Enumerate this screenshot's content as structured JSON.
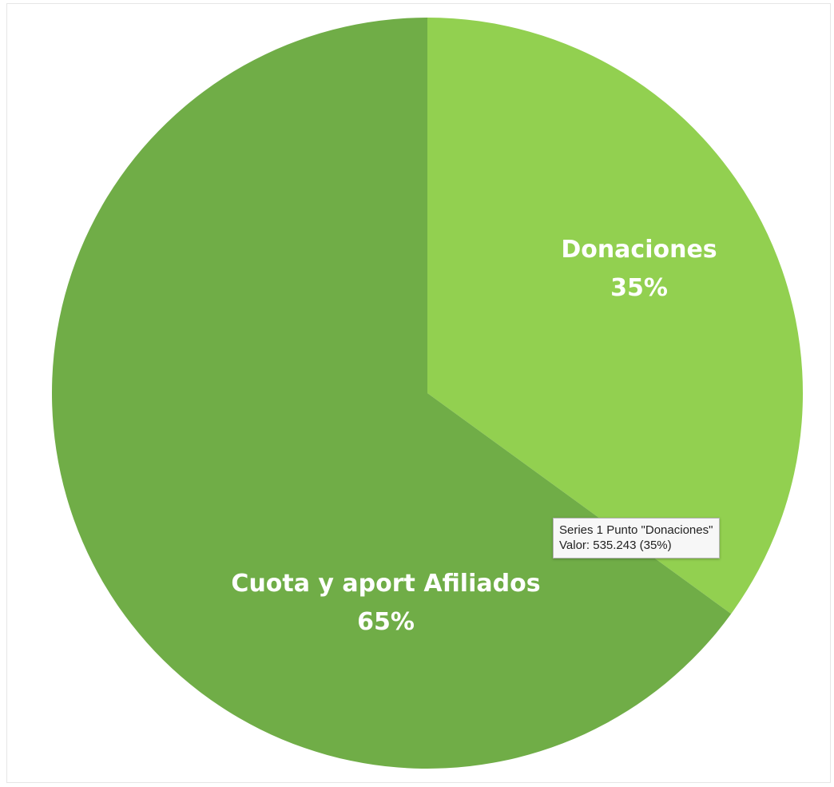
{
  "chart_data": {
    "type": "pie",
    "series": [
      {
        "name": "Series 1",
        "slices": [
          {
            "label": "Donaciones",
            "percent_label": "35%",
            "fraction": 0.35,
            "color": "#92d050"
          },
          {
            "label": "Cuota y aport Afiliados",
            "percent_label": "65%",
            "fraction": 0.65,
            "color": "#70ad47"
          }
        ]
      }
    ],
    "start_angle": "12 o'clock, clockwise",
    "legend": "none",
    "data_labels": "inside slices"
  },
  "tooltip": {
    "line1": "Series 1 Punto \"Donaciones\"",
    "line2": "Valor: 535.243 (35%)"
  }
}
